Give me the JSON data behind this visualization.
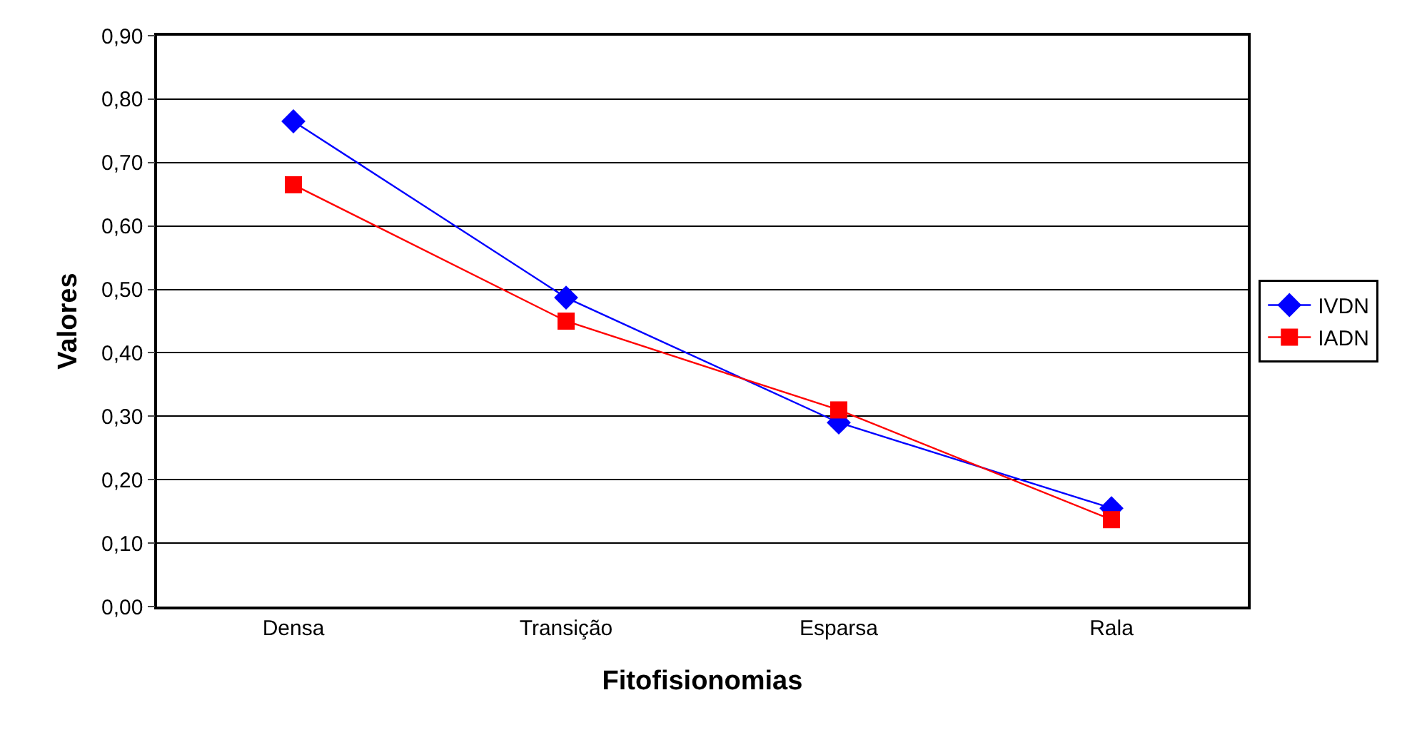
{
  "chart_data": {
    "type": "line",
    "xlabel": "Fitofisionomias",
    "ylabel": "Valores",
    "categories": [
      "Densa",
      "Transição",
      "Esparsa",
      "Rala"
    ],
    "series": [
      {
        "name": "IVDN",
        "color": "#0000ff",
        "marker": "diamond",
        "values": [
          0.765,
          0.487,
          0.29,
          0.155
        ]
      },
      {
        "name": "IADN",
        "color": "#ff0000",
        "marker": "square",
        "values": [
          0.665,
          0.45,
          0.31,
          0.137
        ]
      }
    ],
    "ylim": [
      0,
      0.9
    ],
    "yticks": [
      {
        "value": 0,
        "label": "0,00"
      },
      {
        "value": 0.1,
        "label": "0,10"
      },
      {
        "value": 0.2,
        "label": "0,20"
      },
      {
        "value": 0.3,
        "label": "0,30"
      },
      {
        "value": 0.4,
        "label": "0,40"
      },
      {
        "value": 0.5,
        "label": "0,50"
      },
      {
        "value": 0.6,
        "label": "0,60"
      },
      {
        "value": 0.7,
        "label": "0,70"
      },
      {
        "value": 0.8,
        "label": "0,80"
      },
      {
        "value": 0.9,
        "label": "0,90"
      }
    ],
    "grid": "y",
    "legend": "right",
    "line_style": "solid"
  }
}
